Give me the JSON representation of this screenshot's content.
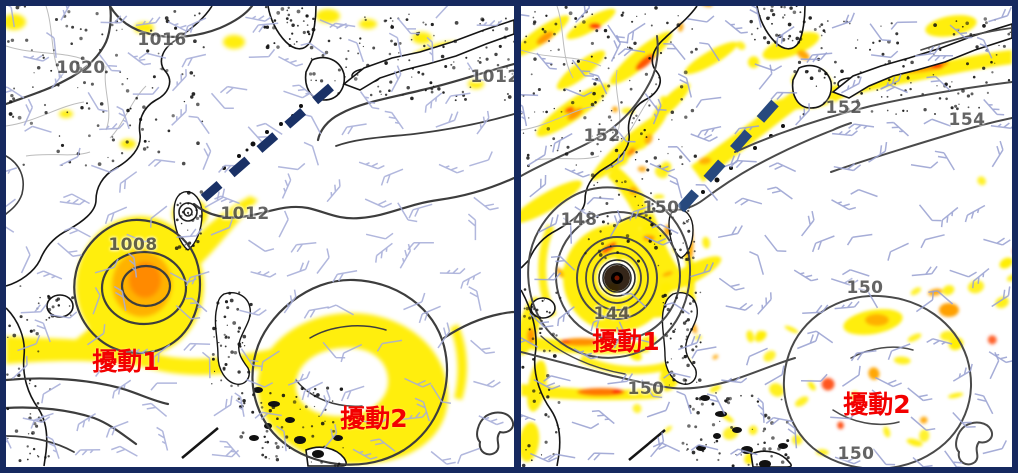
{
  "figure": {
    "panel_count": 2,
    "colors": {
      "frame_navy": "#16295f",
      "dashed_path": "#1c3569",
      "shade_yellow": "#ffee00",
      "shade_orange": "#ffa500",
      "shade_red": "#ff3c00",
      "contour_gray": "#434343",
      "wind_barb": "#a2a9d5",
      "disturbance_text": "#f30000"
    }
  },
  "panels": [
    {
      "name": "left",
      "contour_labels": [
        {
          "text": "1020"
        },
        {
          "text": "1016"
        },
        {
          "text": "1012"
        },
        {
          "text": "1012"
        },
        {
          "text": "1008"
        }
      ],
      "disturbance_labels": [
        {
          "text": "擾動1"
        },
        {
          "text": "擾動2"
        }
      ]
    },
    {
      "name": "right",
      "contour_labels": [
        {
          "text": "152"
        },
        {
          "text": "148"
        },
        {
          "text": "150"
        },
        {
          "text": "144"
        },
        {
          "text": "150"
        },
        {
          "text": "152"
        },
        {
          "text": "154"
        },
        {
          "text": "150"
        },
        {
          "text": "150"
        }
      ],
      "disturbance_labels": [
        {
          "text": "擾動1"
        },
        {
          "text": "擾動2"
        }
      ]
    }
  ]
}
